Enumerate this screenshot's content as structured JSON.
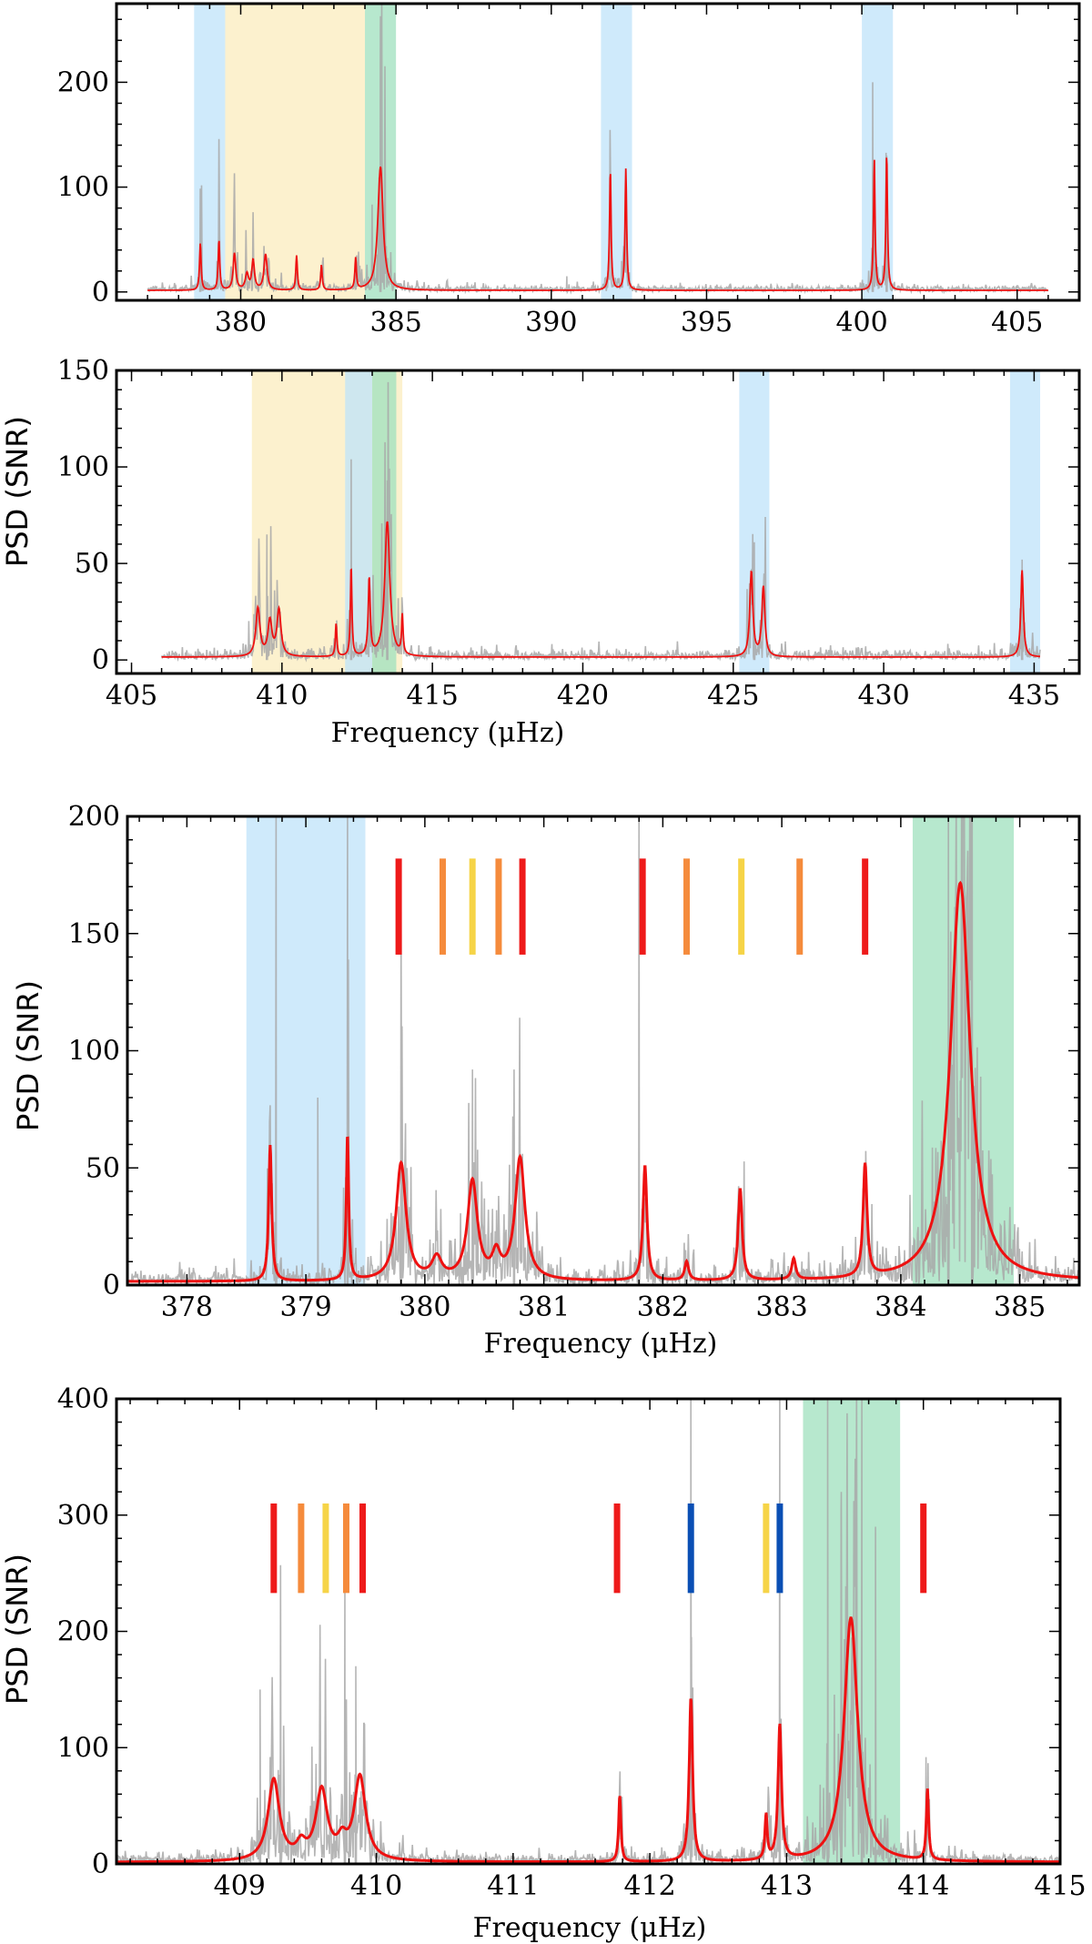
{
  "figure_ylabel_shared": "PSD (SNR)",
  "colors": {
    "blue_band": "#bfe3fa",
    "yellow_band": "#fcefc5",
    "green_band": "#9fe0bd",
    "fit_line": "#ee1111",
    "psd_grey": "#a8a8a8",
    "marker_red": "#ee1a1a",
    "marker_orange": "#f58b3c",
    "marker_yellow": "#f6d447",
    "marker_blue": "#0a4fb4"
  },
  "chart_data": [
    {
      "type": "line",
      "id": "panel1",
      "title": "",
      "xlabel": "",
      "ylabel": "",
      "xlim": [
        376,
        407
      ],
      "ylim": [
        -8,
        275
      ],
      "xticks": [
        380,
        385,
        390,
        395,
        400,
        405
      ],
      "yticks": [
        0,
        100,
        200
      ],
      "bands": [
        {
          "color": "blue",
          "x": [
            378.5,
            379.5
          ]
        },
        {
          "color": "yellow",
          "x": [
            379.5,
            384.0
          ]
        },
        {
          "color": "green",
          "x": [
            384.0,
            385.0
          ]
        },
        {
          "color": "blue",
          "x": [
            391.6,
            392.6
          ]
        },
        {
          "color": "blue",
          "x": [
            400.0,
            401.0
          ]
        }
      ],
      "x_range": [
        377.0,
        406.0
      ],
      "peaks": [
        {
          "x": 378.7,
          "h": 45,
          "w": 0.03
        },
        {
          "x": 379.3,
          "h": 48,
          "w": 0.03
        },
        {
          "x": 379.8,
          "h": 35,
          "w": 0.05
        },
        {
          "x": 380.2,
          "h": 15,
          "w": 0.06
        },
        {
          "x": 380.4,
          "h": 28,
          "w": 0.05
        },
        {
          "x": 380.8,
          "h": 34,
          "w": 0.06
        },
        {
          "x": 381.8,
          "h": 33,
          "w": 0.03
        },
        {
          "x": 382.6,
          "h": 24,
          "w": 0.03
        },
        {
          "x": 383.7,
          "h": 30,
          "w": 0.03
        },
        {
          "x": 384.5,
          "h": 118,
          "w": 0.1
        },
        {
          "x": 391.9,
          "h": 115,
          "w": 0.03
        },
        {
          "x": 392.4,
          "h": 116,
          "w": 0.03
        },
        {
          "x": 400.4,
          "h": 125,
          "w": 0.03
        },
        {
          "x": 400.8,
          "h": 130,
          "w": 0.03
        }
      ],
      "spikes": [
        {
          "x": 378.7,
          "h": 82
        },
        {
          "x": 384.5,
          "h": 263
        },
        {
          "x": 400.35,
          "h": 200
        },
        {
          "x": 400.8,
          "h": 130
        },
        {
          "x": 390.5,
          "h": 15
        }
      ]
    },
    {
      "type": "line",
      "id": "panel2",
      "title": "",
      "xlabel": "Frequency (μHz)",
      "ylabel": "PSD (SNR)",
      "xlim": [
        404.5,
        436.5
      ],
      "ylim": [
        -7,
        150
      ],
      "xticks": [
        405,
        410,
        415,
        420,
        425,
        430,
        435
      ],
      "yticks": [
        0,
        50,
        100,
        150
      ],
      "bands": [
        {
          "color": "yellow",
          "x": [
            409.0,
            414.0
          ]
        },
        {
          "color": "blue",
          "x": [
            412.1,
            413.0
          ]
        },
        {
          "color": "green",
          "x": [
            413.0,
            413.8
          ]
        },
        {
          "color": "blue",
          "x": [
            425.2,
            426.2
          ]
        },
        {
          "color": "blue",
          "x": [
            434.2,
            435.2
          ]
        }
      ],
      "x_range": [
        406.0,
        435.2
      ],
      "peaks": [
        {
          "x": 409.2,
          "h": 25,
          "w": 0.08
        },
        {
          "x": 409.6,
          "h": 18,
          "w": 0.08
        },
        {
          "x": 409.9,
          "h": 24,
          "w": 0.08
        },
        {
          "x": 411.8,
          "h": 17,
          "w": 0.03
        },
        {
          "x": 412.3,
          "h": 47,
          "w": 0.03
        },
        {
          "x": 412.9,
          "h": 40,
          "w": 0.04
        },
        {
          "x": 413.5,
          "h": 70,
          "w": 0.1
        },
        {
          "x": 414.0,
          "h": 20,
          "w": 0.03
        },
        {
          "x": 425.6,
          "h": 44,
          "w": 0.06
        },
        {
          "x": 426.0,
          "h": 36,
          "w": 0.06
        },
        {
          "x": 434.6,
          "h": 45,
          "w": 0.05
        }
      ],
      "spikes": [
        {
          "x": 412.3,
          "h": 104
        },
        {
          "x": 413.5,
          "h": 93
        },
        {
          "x": 409.5,
          "h": 65
        },
        {
          "x": 425.7,
          "h": 61
        },
        {
          "x": 434.6,
          "h": 52
        }
      ]
    },
    {
      "type": "line",
      "id": "panel3",
      "title": "",
      "xlabel": "Frequency (μHz)",
      "ylabel": "PSD (SNR)",
      "xlim": [
        377.5,
        385.5
      ],
      "ylim": [
        0,
        200
      ],
      "xticks": [
        378,
        379,
        380,
        381,
        382,
        383,
        384,
        385
      ],
      "yticks": [
        0,
        50,
        100,
        150,
        200
      ],
      "bands": [
        {
          "color": "blue",
          "x": [
            378.5,
            379.5
          ]
        },
        {
          "color": "green",
          "x": [
            384.1,
            384.95
          ]
        }
      ],
      "x_range": [
        377.5,
        385.5
      ],
      "peaks": [
        {
          "x": 378.7,
          "h": 58,
          "w": 0.015
        },
        {
          "x": 379.35,
          "h": 62,
          "w": 0.012
        },
        {
          "x": 379.8,
          "h": 50,
          "w": 0.05
        },
        {
          "x": 380.1,
          "h": 9,
          "w": 0.05
        },
        {
          "x": 380.4,
          "h": 42,
          "w": 0.05
        },
        {
          "x": 380.6,
          "h": 10,
          "w": 0.04
        },
        {
          "x": 380.8,
          "h": 52,
          "w": 0.05
        },
        {
          "x": 381.85,
          "h": 49,
          "w": 0.02
        },
        {
          "x": 382.2,
          "h": 8,
          "w": 0.02
        },
        {
          "x": 382.65,
          "h": 39,
          "w": 0.02
        },
        {
          "x": 383.1,
          "h": 9,
          "w": 0.02
        },
        {
          "x": 383.7,
          "h": 48,
          "w": 0.02
        },
        {
          "x": 384.5,
          "h": 170,
          "w": 0.1
        }
      ],
      "spikes": [
        {
          "x": 378.75,
          "h": 200
        },
        {
          "x": 379.35,
          "h": 200
        },
        {
          "x": 379.1,
          "h": 80
        },
        {
          "x": 379.8,
          "h": 160
        },
        {
          "x": 380.4,
          "h": 92
        },
        {
          "x": 380.75,
          "h": 92
        },
        {
          "x": 381.8,
          "h": 200
        },
        {
          "x": 384.4,
          "h": 200
        },
        {
          "x": 384.6,
          "h": 200
        }
      ],
      "markers": [
        {
          "x": 379.78,
          "color": "red"
        },
        {
          "x": 380.15,
          "color": "orange"
        },
        {
          "x": 380.4,
          "color": "yellow"
        },
        {
          "x": 380.62,
          "color": "orange"
        },
        {
          "x": 380.82,
          "color": "red"
        },
        {
          "x": 381.83,
          "color": "red"
        },
        {
          "x": 382.2,
          "color": "orange"
        },
        {
          "x": 382.66,
          "color": "yellow"
        },
        {
          "x": 383.15,
          "color": "orange"
        },
        {
          "x": 383.7,
          "color": "red"
        }
      ],
      "marker_range": [
        141,
        182
      ]
    },
    {
      "type": "line",
      "id": "panel4",
      "title": "",
      "xlabel": "Frequency (μHz)",
      "ylabel": "PSD (SNR)",
      "xlim": [
        408.1,
        415
      ],
      "ylim": [
        0,
        400
      ],
      "xticks": [
        409,
        410,
        411,
        412,
        413,
        414,
        415
      ],
      "yticks": [
        0,
        100,
        200,
        300,
        400
      ],
      "bands": [
        {
          "color": "green",
          "x": [
            413.12,
            413.83
          ]
        }
      ],
      "x_range": [
        408.1,
        415
      ],
      "peaks": [
        {
          "x": 409.25,
          "h": 70,
          "w": 0.05
        },
        {
          "x": 409.45,
          "h": 12,
          "w": 0.04
        },
        {
          "x": 409.6,
          "h": 60,
          "w": 0.05
        },
        {
          "x": 409.75,
          "h": 14,
          "w": 0.04
        },
        {
          "x": 409.88,
          "h": 72,
          "w": 0.05
        },
        {
          "x": 411.78,
          "h": 57,
          "w": 0.01
        },
        {
          "x": 412.3,
          "h": 141,
          "w": 0.015
        },
        {
          "x": 412.85,
          "h": 38,
          "w": 0.01
        },
        {
          "x": 412.95,
          "h": 116,
          "w": 0.015
        },
        {
          "x": 413.47,
          "h": 210,
          "w": 0.06
        },
        {
          "x": 414.03,
          "h": 61,
          "w": 0.01
        }
      ],
      "spikes": [
        {
          "x": 412.3,
          "h": 400
        },
        {
          "x": 409.3,
          "h": 257
        },
        {
          "x": 409.77,
          "h": 245
        },
        {
          "x": 409.15,
          "h": 150
        },
        {
          "x": 409.85,
          "h": 170
        },
        {
          "x": 412.95,
          "h": 165
        },
        {
          "x": 413.3,
          "h": 400
        },
        {
          "x": 413.4,
          "h": 320
        },
        {
          "x": 413.55,
          "h": 400
        },
        {
          "x": 413.65,
          "h": 290
        }
      ],
      "markers": [
        {
          "x": 409.25,
          "color": "red"
        },
        {
          "x": 409.45,
          "color": "orange"
        },
        {
          "x": 409.63,
          "color": "yellow"
        },
        {
          "x": 409.78,
          "color": "orange"
        },
        {
          "x": 409.9,
          "color": "red"
        },
        {
          "x": 411.76,
          "color": "red"
        },
        {
          "x": 412.3,
          "color": "blue"
        },
        {
          "x": 412.85,
          "color": "yellow"
        },
        {
          "x": 412.95,
          "color": "blue"
        },
        {
          "x": 414.0,
          "color": "red"
        }
      ],
      "marker_range": [
        233,
        310
      ]
    }
  ]
}
